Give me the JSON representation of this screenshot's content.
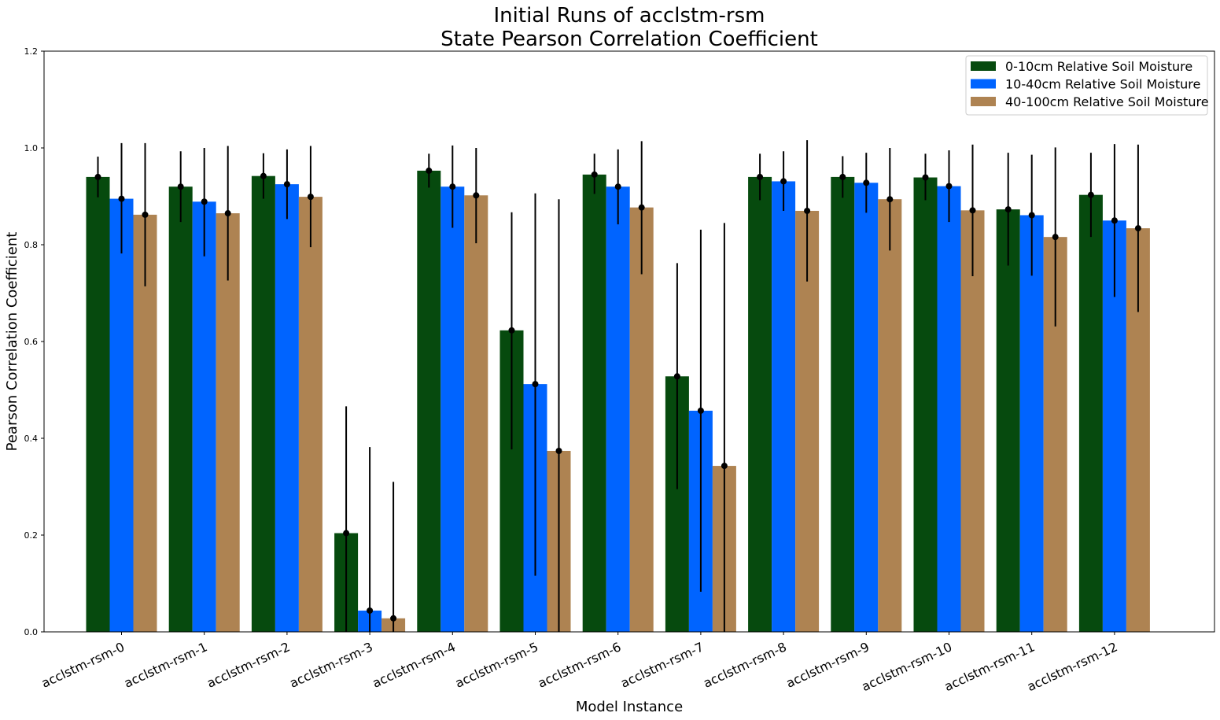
{
  "chart_data": {
    "type": "bar",
    "title": [
      "Initial Runs of acclstm-rsm",
      "State Pearson Correlation Coefficient"
    ],
    "xlabel": "Model Instance",
    "ylabel": "Pearson Correlation Coefficient",
    "ylim": [
      0,
      1.2
    ],
    "yticks": [
      "0.0",
      "0.2",
      "0.4",
      "0.6",
      "0.8",
      "1.0",
      "1.2"
    ],
    "legend_position": "top-right",
    "grid": false,
    "categories": [
      "acclstm-rsm-0",
      "acclstm-rsm-1",
      "acclstm-rsm-2",
      "acclstm-rsm-3",
      "acclstm-rsm-4",
      "acclstm-rsm-5",
      "acclstm-rsm-6",
      "acclstm-rsm-7",
      "acclstm-rsm-8",
      "acclstm-rsm-9",
      "acclstm-rsm-10",
      "acclstm-rsm-11",
      "acclstm-rsm-12"
    ],
    "series": [
      {
        "name": "0-10cm Relative Soil Moisture",
        "color": "#064a0e",
        "values": [
          0.94,
          0.92,
          0.942,
          0.204,
          0.953,
          0.623,
          0.945,
          0.528,
          0.94,
          0.94,
          0.939,
          0.873,
          0.903
        ],
        "err_low": [
          0.898,
          0.847,
          0.895,
          0.0,
          0.918,
          0.377,
          0.905,
          0.295,
          0.892,
          0.897,
          0.892,
          0.757,
          0.816
        ],
        "err_high": [
          0.982,
          0.993,
          0.989,
          0.466,
          0.988,
          0.867,
          0.988,
          0.762,
          0.988,
          0.983,
          0.988,
          0.99,
          0.99
        ]
      },
      {
        "name": "10-40cm Relative Soil Moisture",
        "color": "#0064ff",
        "values": [
          0.895,
          0.889,
          0.925,
          0.044,
          0.92,
          0.512,
          0.92,
          0.457,
          0.931,
          0.928,
          0.921,
          0.861,
          0.85
        ],
        "err_low": [
          0.782,
          0.776,
          0.853,
          0.0,
          0.835,
          0.116,
          0.842,
          0.083,
          0.87,
          0.866,
          0.847,
          0.736,
          0.692
        ],
        "err_high": [
          1.01,
          1.0,
          0.997,
          0.382,
          1.005,
          0.906,
          0.997,
          0.831,
          0.993,
          0.99,
          0.995,
          0.986,
          1.008
        ]
      },
      {
        "name": "40-100cm Relative Soil Moisture",
        "color": "#ae8352",
        "values": [
          0.862,
          0.865,
          0.899,
          0.028,
          0.902,
          0.374,
          0.877,
          0.343,
          0.87,
          0.894,
          0.871,
          0.816,
          0.834
        ],
        "err_low": [
          0.714,
          0.726,
          0.795,
          0.0,
          0.803,
          0.0,
          0.739,
          0.0,
          0.724,
          0.788,
          0.735,
          0.631,
          0.661
        ],
        "err_high": [
          1.01,
          1.004,
          1.004,
          0.31,
          1.0,
          0.894,
          1.014,
          0.845,
          1.016,
          1.0,
          1.007,
          1.001,
          1.007
        ]
      }
    ]
  }
}
